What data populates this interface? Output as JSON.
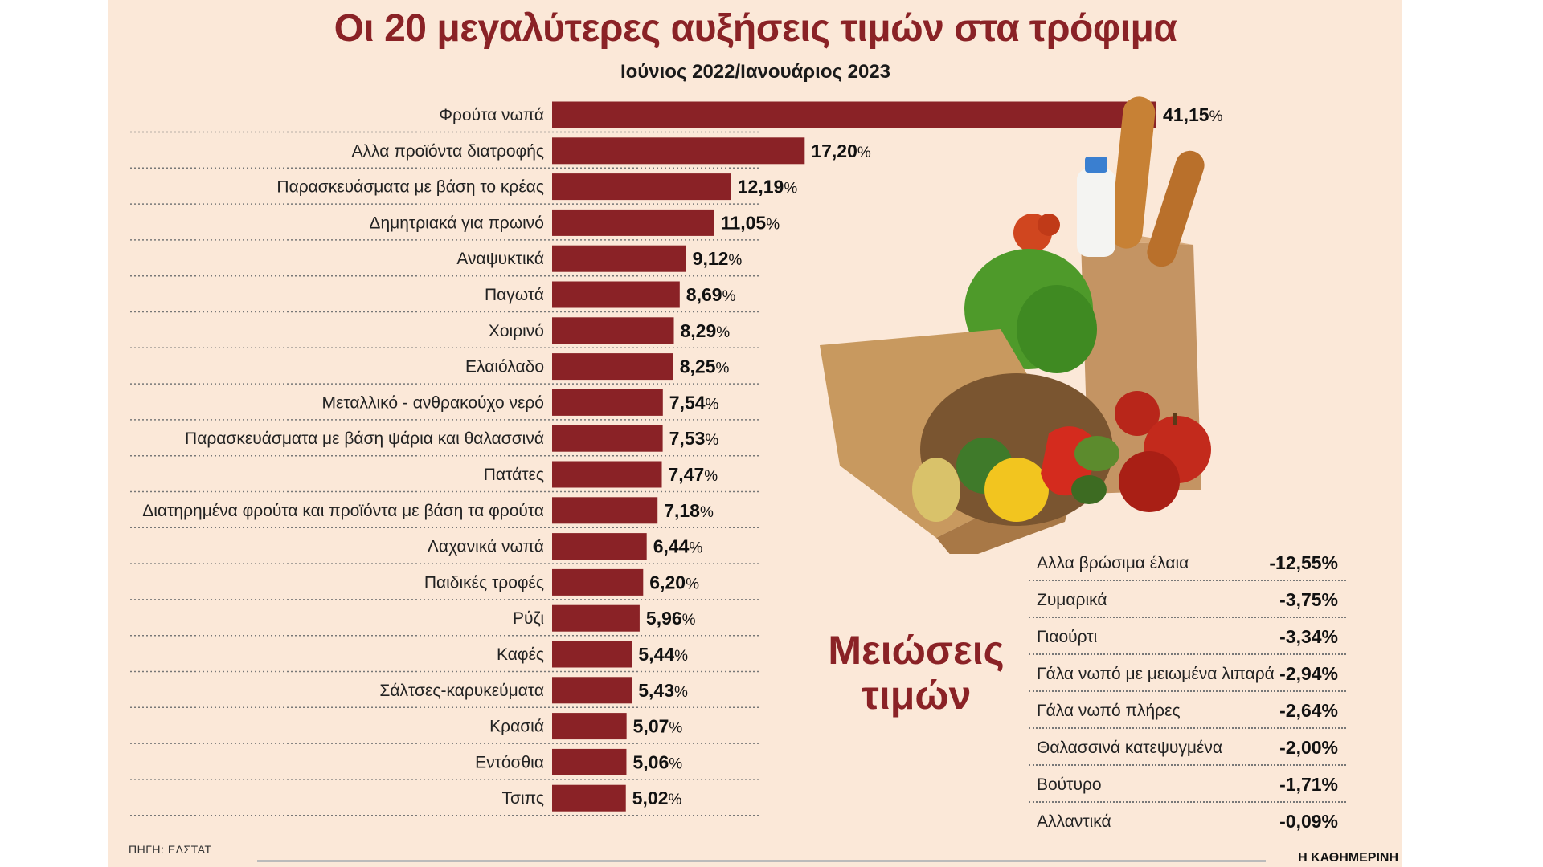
{
  "chart_data": {
    "type": "bar",
    "orientation": "horizontal",
    "title": "Οι 20 μεγαλύτερες αυξήσεις τιμών στα τρόφιμα",
    "subtitle": "Ιούνιος 2022/Ιανουάριος 2023",
    "categories": [
      "Φρούτα νωπά",
      "Αλλα προϊόντα διατροφής",
      "Παρασκευάσματα με βάση το κρέας",
      "Δημητριακά για πρωινό",
      "Αναψυκτικά",
      "Παγωτά",
      "Χοιρινό",
      "Ελαιόλαδο",
      "Μεταλλικό - ανθρακούχο νερό",
      "Παρασκευάσματα με βάση ψάρια και θαλασσινά",
      "Πατάτες",
      "Διατηρημένα φρούτα και προϊόντα με βάση τα φρούτα",
      "Λαχανικά νωπά",
      "Παιδικές τροφές",
      "Ρύζι",
      "Καφές",
      "Σάλτσες-καρυκεύματα",
      "Κρασιά",
      "Εντόσθια",
      "Τσιπς"
    ],
    "values": [
      41.15,
      17.2,
      12.19,
      11.05,
      9.12,
      8.69,
      8.29,
      8.25,
      7.54,
      7.53,
      7.47,
      7.18,
      6.44,
      6.2,
      5.96,
      5.44,
      5.43,
      5.07,
      5.06,
      5.02
    ],
    "value_labels": [
      "41,15",
      "17,20",
      "12,19",
      "11,05",
      "9,12",
      "8,69",
      "8,29",
      "8,25",
      "7,54",
      "7,53",
      "7,47",
      "7,18",
      "6,44",
      "6,20",
      "5,96",
      "5,44",
      "5,43",
      "5,07",
      "5,06",
      "5,02"
    ],
    "unit": "%",
    "xlim": [
      0,
      41.15
    ],
    "bar_color": "#8a2226",
    "grid": false,
    "legend": "none"
  },
  "decreases": {
    "title_line1": "Μειώσεις",
    "title_line2": "τιμών",
    "items": [
      {
        "name": "Αλλα βρώσιμα έλαια",
        "value": "-12,55%"
      },
      {
        "name": "Ζυμαρικά",
        "value": "-3,75%"
      },
      {
        "name": "Γιαούρτι",
        "value": "-3,34%"
      },
      {
        "name": "Γάλα νωπό με μειωμένα λιπαρά",
        "value": "-2,94%"
      },
      {
        "name": "Γάλα νωπό πλήρες",
        "value": "-2,64%"
      },
      {
        "name": "Θαλασσινά κατεψυγμένα",
        "value": "-2,00%"
      },
      {
        "name": "Βούτυρο",
        "value": "-1,71%"
      },
      {
        "name": "Αλλαντικά",
        "value": "-0,09%"
      }
    ]
  },
  "source": "ΠΗΓΗ: ΕΛΣΤΑΤ",
  "publisher": "Η ΚΑΘΗΜΕΡΙΝΗ",
  "colors": {
    "background": "#fbe8d8",
    "accent": "#8a2226"
  },
  "illustration": "grocery-bags-with-vegetables"
}
